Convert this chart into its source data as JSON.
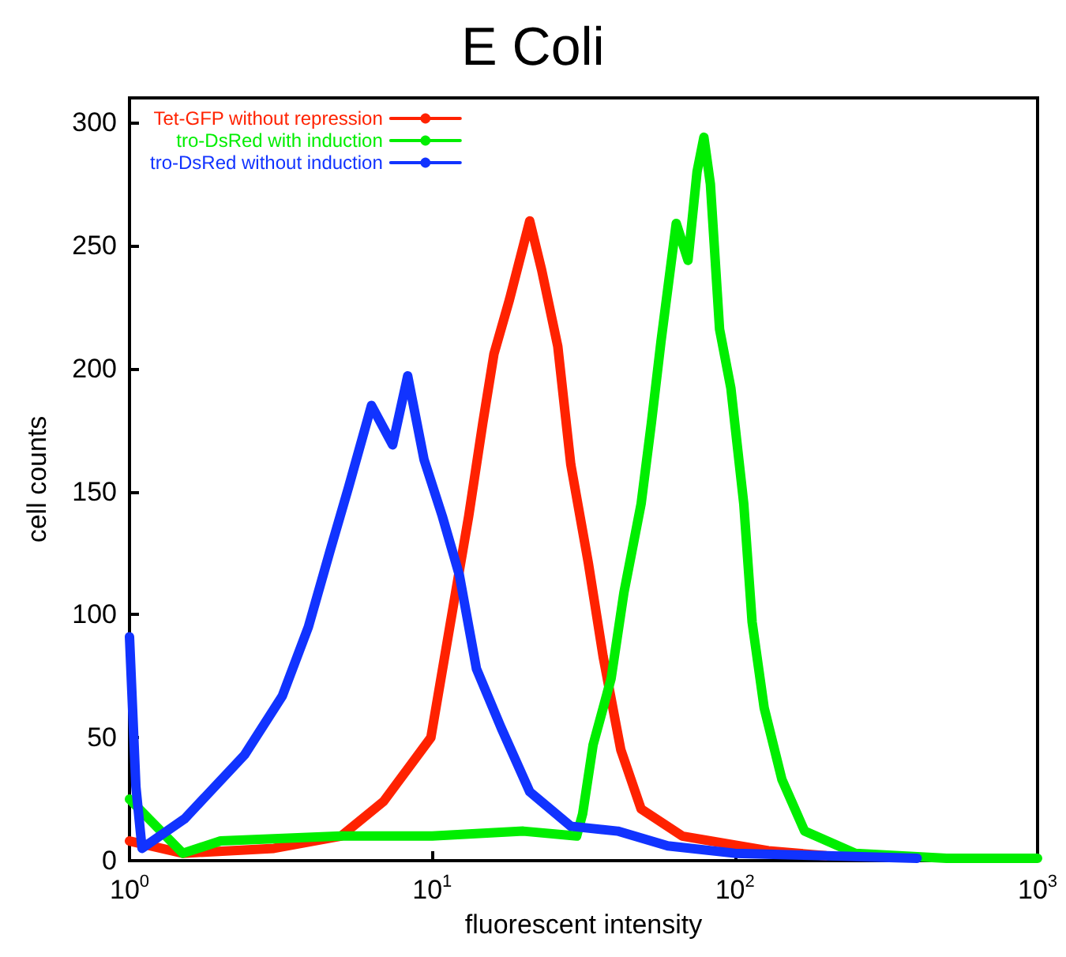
{
  "chart_data": {
    "type": "line",
    "title": "E Coli",
    "xlabel": "fluorescent intensity",
    "ylabel": "cell counts",
    "log": "x",
    "xlim": [
      1,
      1000
    ],
    "xticks": [
      {
        "value": 1,
        "label": "10$^{0}$"
      },
      {
        "value": 10,
        "label": "10$^{1}$"
      },
      {
        "value": 100,
        "label": "10$^{2}$"
      },
      {
        "value": 1000,
        "label": "10$^{3}$"
      }
    ],
    "ylim": [
      0,
      310
    ],
    "yticks": [
      0,
      50,
      100,
      150,
      200,
      250,
      300
    ],
    "grid": false,
    "legend": "top left",
    "marker": "none",
    "line_style": "solid",
    "series": [
      {
        "name": "Tet-GFP without repression",
        "color": "#ff2200",
        "x": [
          1,
          1.5,
          3,
          5,
          6.9,
          9.9,
          11.5,
          13.2,
          14.7,
          16,
          18,
          21,
          23,
          26,
          28.7,
          32.8,
          36.7,
          42,
          49,
          67,
          129,
          200
        ],
        "values": [
          8,
          3,
          5,
          10,
          24,
          50,
          97,
          140,
          178,
          206,
          228,
          260,
          240,
          209,
          161,
          121,
          83,
          45,
          21,
          10,
          4,
          2
        ]
      },
      {
        "name": "tro-DsRed with induction",
        "color": "#00ee00",
        "x": [
          1,
          1.5,
          2,
          5,
          10,
          20,
          30,
          31.4,
          34,
          39,
          43,
          49,
          53,
          57,
          64,
          70,
          75,
          79,
          83,
          89,
          97,
          107,
          114,
          125,
          143,
          170,
          250,
          500,
          1000
        ],
        "values": [
          25,
          3,
          8,
          10,
          10,
          12,
          10,
          19,
          47,
          74,
          109,
          145,
          178,
          211,
          259,
          244,
          280,
          294,
          275,
          216,
          192,
          145,
          97,
          62,
          33,
          12,
          3,
          1,
          1
        ]
      },
      {
        "name": "tro-DsRed without induction",
        "color": "#1133ff",
        "x": [
          1,
          1.05,
          1.1,
          1.52,
          2.4,
          3.2,
          3.9,
          4.6,
          5.3,
          6.3,
          7.4,
          8.3,
          9.4,
          10.8,
          12.3,
          14,
          16.9,
          21,
          28.7,
          41,
          60,
          100,
          200,
          400
        ],
        "values": [
          91,
          30,
          5,
          17,
          43,
          67,
          95,
          126,
          152,
          185,
          169,
          197,
          163,
          140,
          116,
          78,
          54,
          28,
          14,
          12,
          6,
          3,
          2,
          1
        ]
      }
    ]
  }
}
